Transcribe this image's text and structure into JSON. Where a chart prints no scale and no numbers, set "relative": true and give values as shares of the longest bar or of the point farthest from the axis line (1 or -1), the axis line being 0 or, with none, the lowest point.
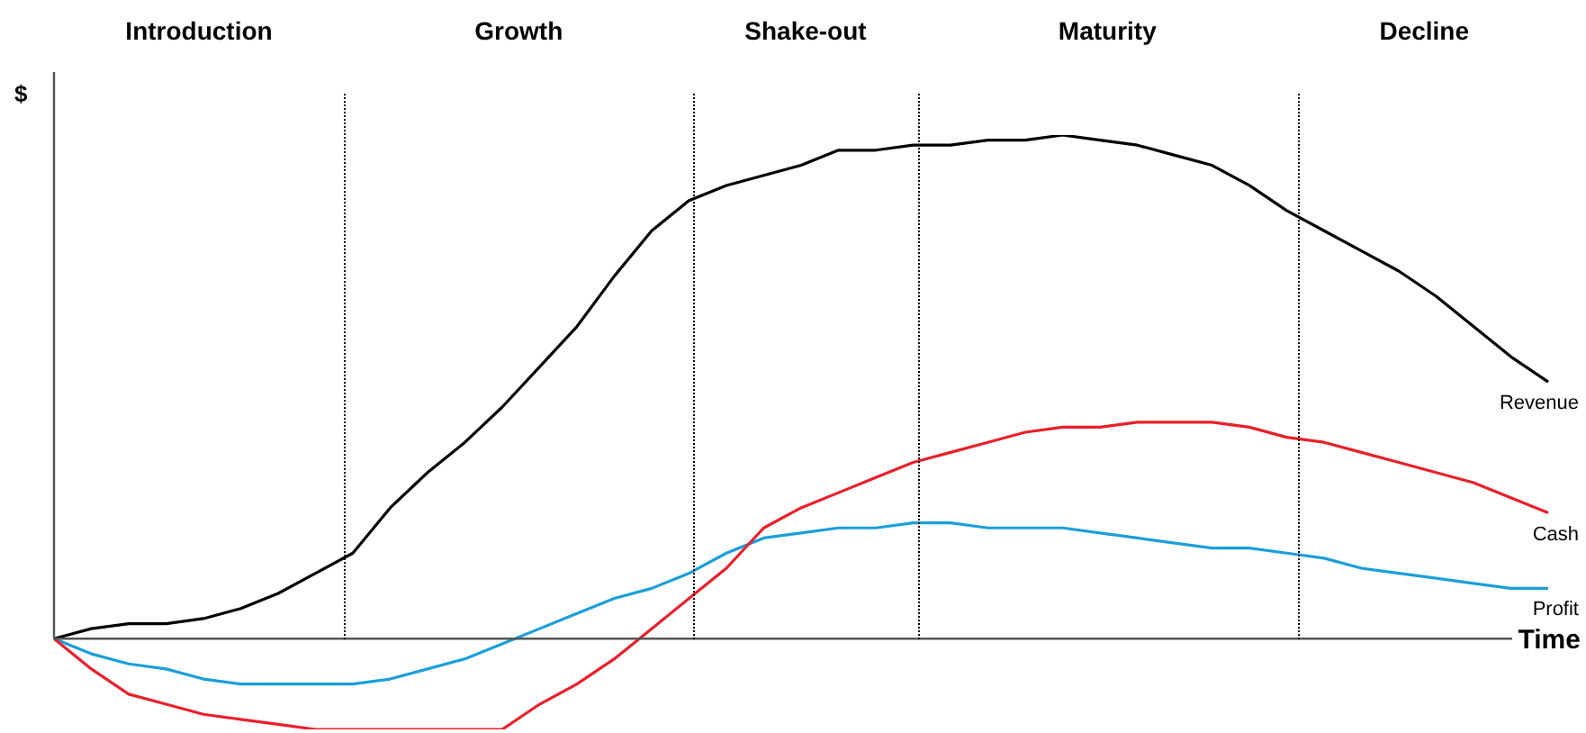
{
  "chart_data": {
    "type": "line",
    "relative": true,
    "xlabel": "Time",
    "ylabel": "$",
    "tick_labels": false,
    "legend": false,
    "marker": "none",
    "line_style": "solid",
    "annotations": [
      "Introduction",
      "Growth",
      "Shake-out",
      "Maturity",
      "Decline"
    ],
    "categories": [
      null,
      null,
      null,
      null,
      null,
      null,
      null,
      null,
      null,
      null,
      null,
      null,
      null,
      null,
      null,
      null,
      null,
      null,
      null,
      null,
      null,
      null,
      null,
      null,
      null,
      null,
      null,
      null,
      null,
      null,
      null,
      null,
      null,
      null,
      null,
      null,
      null,
      null,
      null,
      null,
      null
    ],
    "series": [
      {
        "name": "Revenue",
        "color": "#000000",
        "values": [
          0,
          0.02,
          0.03,
          0.03,
          0.04,
          0.06,
          0.09,
          0.13,
          0.17,
          0.26,
          0.33,
          0.39,
          0.46,
          0.54,
          0.62,
          0.72,
          0.81,
          0.87,
          0.9,
          0.92,
          0.94,
          0.97,
          0.97,
          0.98,
          0.98,
          0.99,
          0.99,
          1,
          0.99,
          0.98,
          0.96,
          0.94,
          0.9,
          0.85,
          0.81,
          0.77,
          0.73,
          0.68,
          0.62,
          0.56,
          0.51
        ]
      },
      {
        "name": "Cash",
        "color": "#e8202a",
        "values": [
          0,
          -0.06,
          -0.11,
          -0.13,
          -0.15,
          -0.16,
          -0.17,
          -0.18,
          -0.18,
          -0.18,
          -0.18,
          -0.18,
          -0.18,
          -0.13,
          -0.09,
          -0.04,
          0.02,
          0.08,
          0.14,
          0.22,
          0.26,
          0.29,
          0.32,
          0.35,
          0.37,
          0.39,
          0.41,
          0.42,
          0.42,
          0.43,
          0.43,
          0.43,
          0.42,
          0.4,
          0.39,
          0.37,
          0.35,
          0.33,
          0.31,
          0.28,
          0.25
        ]
      },
      {
        "name": "Profit",
        "color": "#1a9fd8",
        "values": [
          0,
          -0.03,
          -0.05,
          -0.06,
          -0.08,
          -0.09,
          -0.09,
          -0.09,
          -0.09,
          -0.08,
          -0.06,
          -0.04,
          -0.01,
          0.02,
          0.05,
          0.08,
          0.1,
          0.13,
          0.17,
          0.2,
          0.21,
          0.22,
          0.22,
          0.23,
          0.23,
          0.22,
          0.22,
          0.22,
          0.21,
          0.2,
          0.19,
          0.18,
          0.18,
          0.17,
          0.16,
          0.14,
          0.13,
          0.12,
          0.11,
          0.1,
          0.1
        ]
      }
    ]
  }
}
